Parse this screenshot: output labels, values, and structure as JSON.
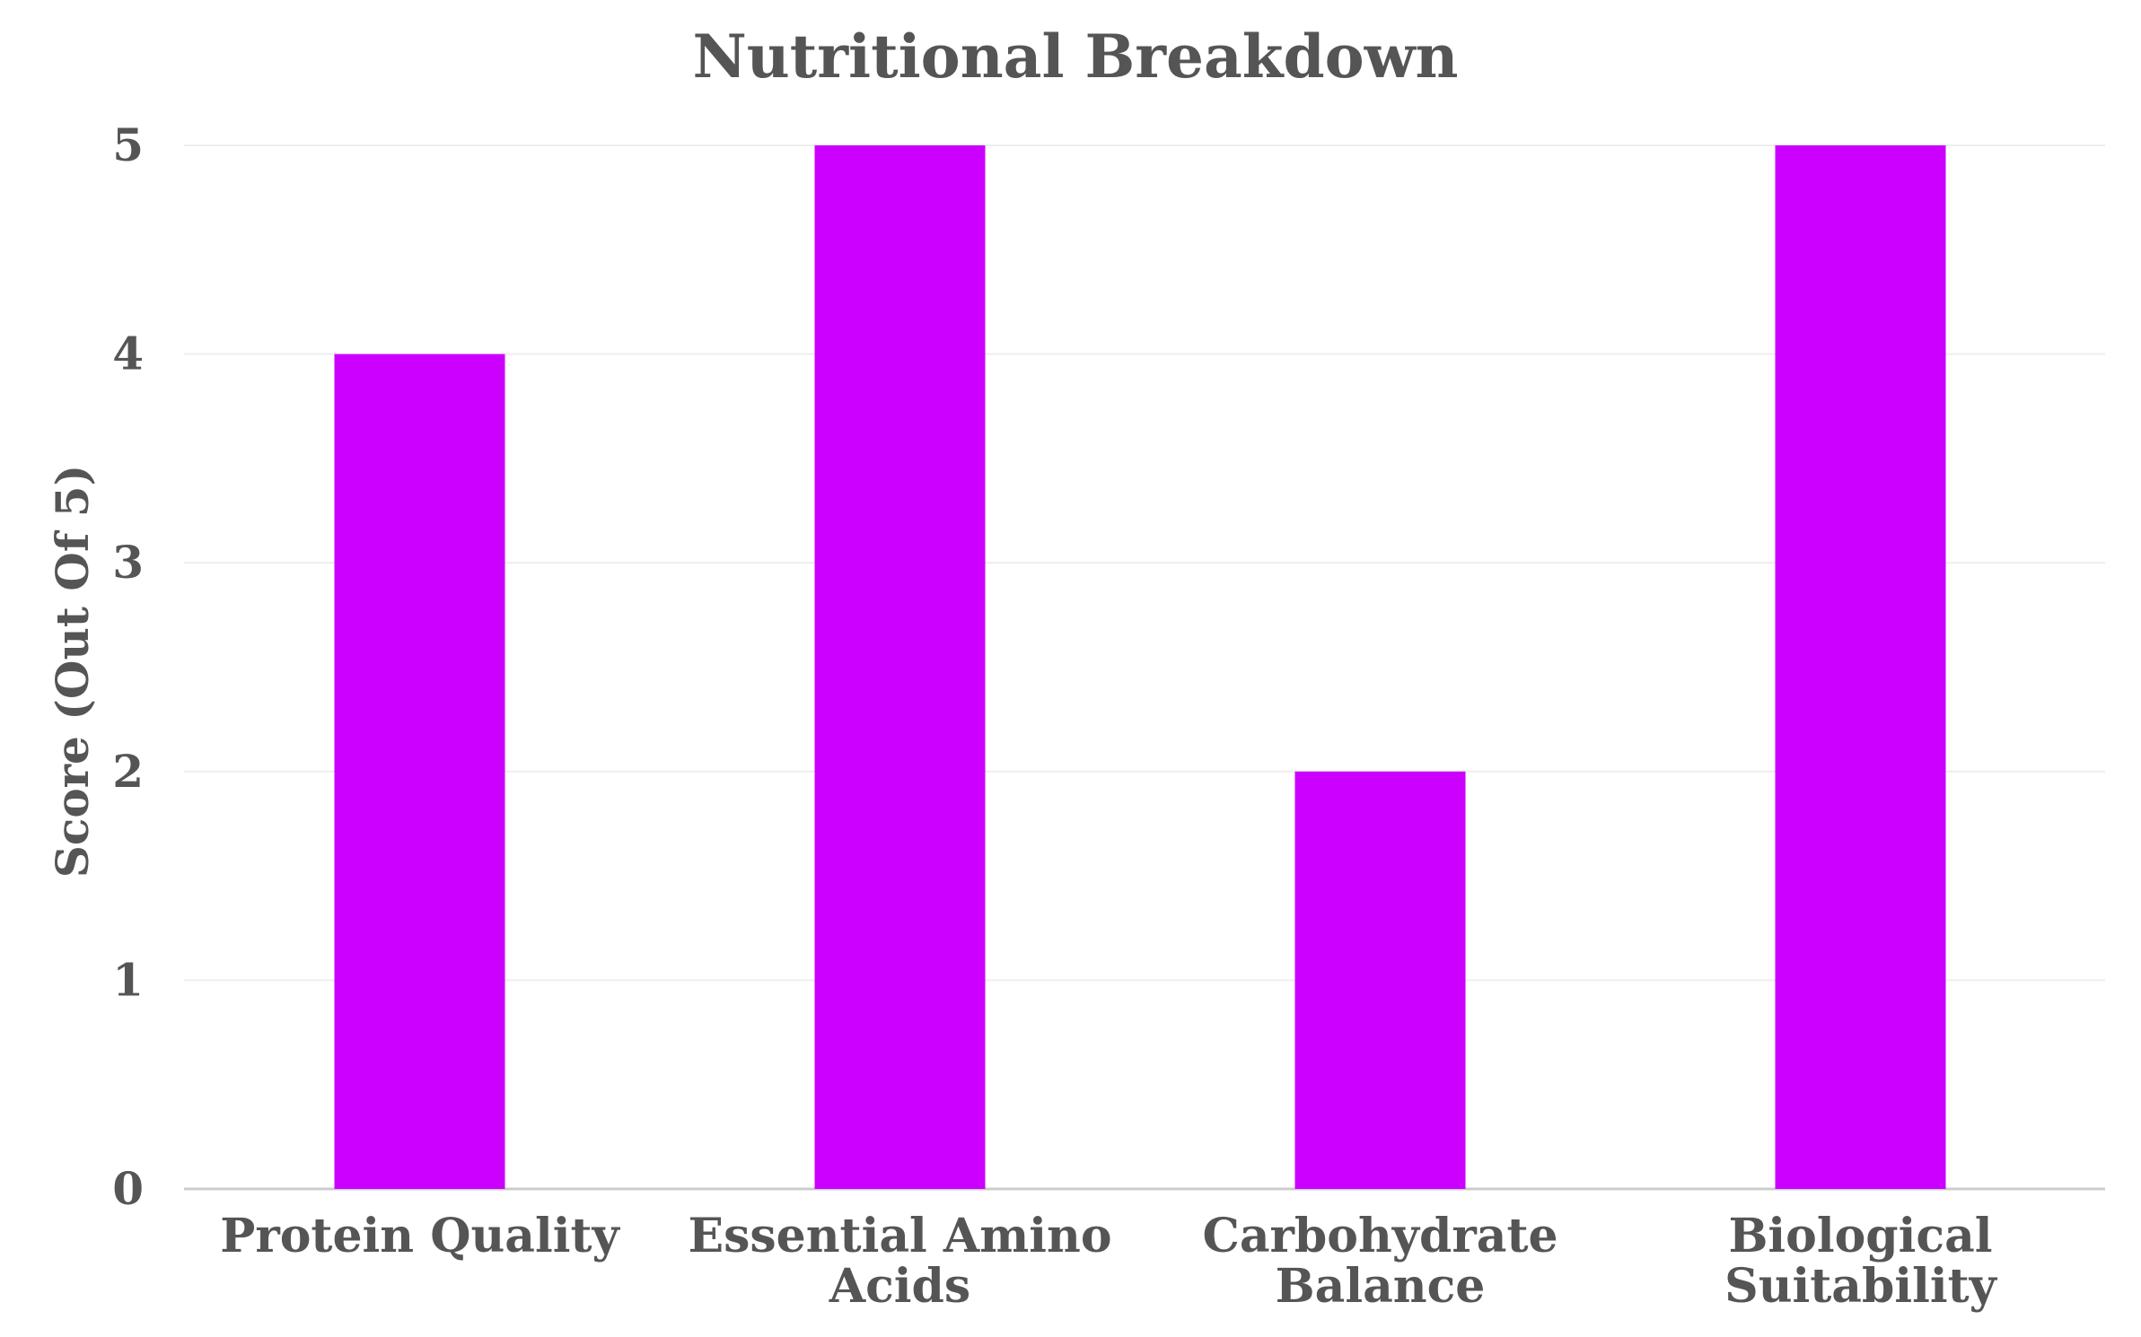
{
  "chart_data": {
    "type": "bar",
    "title": "Nutritional Breakdown",
    "xlabel": "",
    "ylabel": "Score (Out Of 5)",
    "categories": [
      [
        "Protein Quality"
      ],
      [
        "Essential Amino",
        "Acids"
      ],
      [
        "Carbohydrate",
        "Balance"
      ],
      [
        "Biological",
        "Suitability"
      ]
    ],
    "values": [
      4,
      5,
      2,
      5
    ],
    "ylim": [
      0,
      5
    ],
    "yticks": [
      "0",
      "1",
      "2",
      "3",
      "4",
      "5"
    ],
    "grid": true,
    "legend": "none",
    "colors": {
      "bar": "#cc00ff",
      "text": "#555555",
      "grid": "#eeeeee",
      "axis": "#cccccc"
    }
  }
}
